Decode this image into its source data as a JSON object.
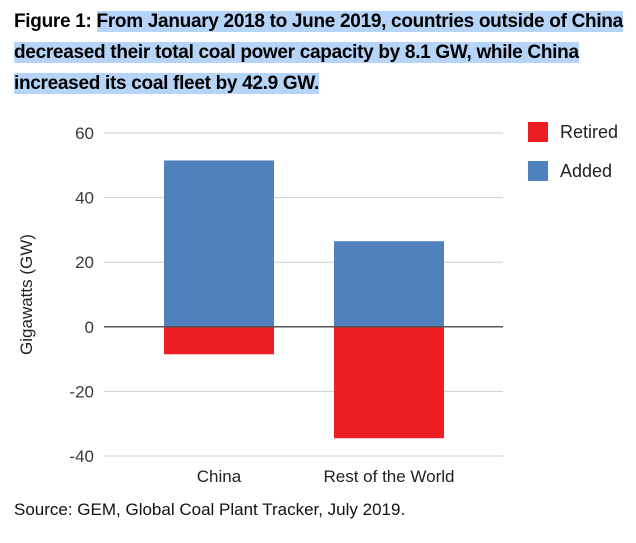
{
  "caption": {
    "label": "Figure 1:",
    "text": "From January 2018 to June 2019, countries outside of China decreased their total coal power capacity by 8.1 GW, while China increased its coal fleet by 42.9 GW."
  },
  "source": "Source: GEM, Global Coal Plant Tracker, July 2019.",
  "chart_data": {
    "type": "bar",
    "stacked": true,
    "categories": [
      "China",
      "Rest of the World"
    ],
    "series": [
      {
        "name": "Retired",
        "color": "#ee1f24",
        "values": [
          -8.5,
          -34.5
        ]
      },
      {
        "name": "Added",
        "color": "#4f81bd",
        "values": [
          51.5,
          26.5
        ]
      }
    ],
    "xlabel": "",
    "ylabel": "Gigawatts (GW)",
    "ylim": [
      -40,
      60
    ],
    "yticks": [
      60,
      40,
      20,
      0,
      -20,
      -40
    ],
    "grid": true,
    "legend": "top-right"
  }
}
